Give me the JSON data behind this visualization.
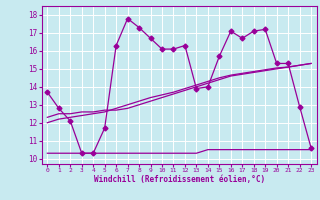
{
  "xlabel": "Windchill (Refroidissement éolien,°C)",
  "bg_color": "#c8eaf0",
  "line_color": "#990099",
  "grid_color": "#b0d8e0",
  "x_ticks": [
    0,
    1,
    2,
    3,
    4,
    5,
    6,
    7,
    8,
    9,
    10,
    11,
    12,
    13,
    14,
    15,
    16,
    17,
    18,
    19,
    20,
    21,
    22,
    23
  ],
  "y_ticks": [
    10,
    11,
    12,
    13,
    14,
    15,
    16,
    17,
    18
  ],
  "xlim": [
    -0.5,
    23.5
  ],
  "ylim": [
    9.7,
    18.5
  ],
  "series1_x": [
    0,
    1,
    2,
    3,
    4,
    5,
    6,
    7,
    8,
    9,
    10,
    11,
    12,
    13,
    14,
    15,
    16,
    17,
    18,
    19,
    20,
    21,
    22,
    23
  ],
  "series1_y": [
    13.7,
    12.8,
    12.1,
    10.3,
    10.3,
    11.7,
    16.3,
    17.8,
    17.3,
    16.7,
    16.1,
    16.1,
    16.3,
    13.9,
    14.0,
    15.7,
    17.1,
    16.7,
    17.1,
    17.2,
    15.3,
    15.3,
    12.9,
    10.6
  ],
  "series2_x": [
    0,
    1,
    2,
    3,
    4,
    5,
    6,
    7,
    8,
    9,
    10,
    11,
    12,
    13,
    14,
    15,
    16,
    17,
    18,
    19,
    20,
    21,
    22,
    23
  ],
  "series2_y": [
    10.3,
    10.3,
    10.3,
    10.3,
    10.3,
    10.3,
    10.3,
    10.3,
    10.3,
    10.3,
    10.3,
    10.3,
    10.3,
    10.3,
    10.5,
    10.5,
    10.5,
    10.5,
    10.5,
    10.5,
    10.5,
    10.5,
    10.5,
    10.5
  ],
  "series3_x": [
    0,
    1,
    2,
    3,
    4,
    5,
    6,
    7,
    8,
    9,
    10,
    11,
    12,
    13,
    14,
    15,
    16,
    17,
    18,
    19,
    20,
    21,
    22,
    23
  ],
  "series3_y": [
    12.3,
    12.5,
    12.5,
    12.6,
    12.6,
    12.7,
    12.7,
    12.8,
    13.0,
    13.2,
    13.4,
    13.6,
    13.8,
    14.0,
    14.2,
    14.4,
    14.6,
    14.7,
    14.8,
    14.9,
    15.0,
    15.1,
    15.2,
    15.3
  ],
  "series4_x": [
    0,
    1,
    2,
    3,
    4,
    5,
    6,
    7,
    8,
    9,
    10,
    11,
    12,
    13,
    14,
    15,
    16,
    17,
    18,
    19,
    20,
    21,
    22,
    23
  ],
  "series4_y": [
    12.0,
    12.2,
    12.3,
    12.4,
    12.5,
    12.6,
    12.8,
    13.0,
    13.2,
    13.4,
    13.55,
    13.7,
    13.9,
    14.1,
    14.3,
    14.5,
    14.65,
    14.75,
    14.85,
    14.95,
    15.05,
    15.1,
    15.2,
    15.3
  ]
}
